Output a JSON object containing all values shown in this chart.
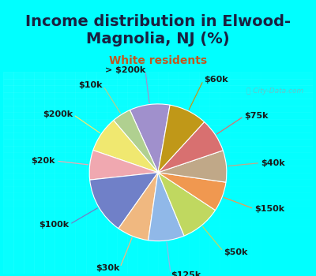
{
  "title": "Income distribution in Elwood-\nMagnolia, NJ (%)",
  "subtitle": "White residents",
  "background_color_outer": "#00FFFF",
  "background_color_inner_tl": "#e8f8f0",
  "background_color_inner_br": "#c8ecd8",
  "watermark": "ⓘ City-Data.com",
  "labels": [
    "> $200k",
    "$10k",
    "$200k",
    "$20k",
    "$100k",
    "$30k",
    "$125k",
    "$50k",
    "$150k",
    "$40k",
    "$75k",
    "$60k"
  ],
  "values": [
    9.5,
    4.5,
    8.5,
    7.0,
    13.5,
    7.5,
    8.5,
    9.5,
    7.0,
    7.5,
    8.0,
    9.0
  ],
  "colors": [
    "#a090cc",
    "#b0d090",
    "#f0e870",
    "#f0a8b0",
    "#7080c8",
    "#f0b880",
    "#90b8e8",
    "#c0d860",
    "#f09850",
    "#c0a888",
    "#d87070",
    "#c09818"
  ],
  "startangle": 80,
  "title_fontsize": 14,
  "subtitle_fontsize": 10,
  "label_fontsize": 8
}
